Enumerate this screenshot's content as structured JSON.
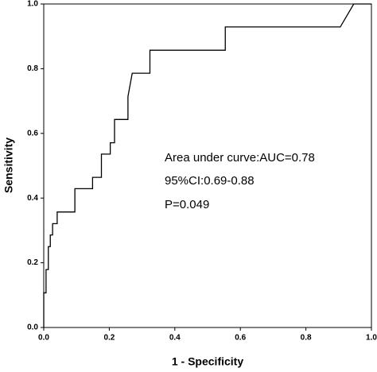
{
  "chart_data": {
    "type": "line",
    "xlabel": "1 - Specificity",
    "ylabel": "Sensitivity",
    "annotations": [
      "Area under curve:AUC=0.78",
      "95%CI:0.69-0.88",
      "P=0.049"
    ],
    "color": "#000000",
    "x": [
      0,
      0,
      0.007,
      0.007,
      0.014,
      0.014,
      0.02,
      0.02,
      0.027,
      0.027,
      0.041,
      0.041,
      0.095,
      0.095,
      0.149,
      0.149,
      0.176,
      0.176,
      0.203,
      0.203,
      0.216,
      0.216,
      0.257,
      0.257,
      0.27,
      0.324,
      0.324,
      0.554,
      0.554,
      0.905,
      0.946,
      1
    ],
    "values": [
      0,
      0.107,
      0.107,
      0.179,
      0.179,
      0.25,
      0.25,
      0.286,
      0.286,
      0.321,
      0.321,
      0.357,
      0.357,
      0.429,
      0.429,
      0.464,
      0.464,
      0.536,
      0.536,
      0.571,
      0.571,
      0.643,
      0.643,
      0.714,
      0.786,
      0.786,
      0.857,
      0.857,
      0.929,
      0.929,
      1,
      1
    ],
    "xlim": [
      0,
      1
    ],
    "ylim": [
      0,
      1
    ],
    "xticks": [
      {
        "value": 0,
        "label": "0.0"
      },
      0.2,
      0.4,
      0.6,
      0.8,
      {
        "value": 1,
        "label": "1.0"
      }
    ],
    "yticks": [
      {
        "value": 0,
        "label": "0.0"
      },
      0.2,
      0.4,
      0.6,
      0.8,
      {
        "value": 1,
        "label": "1.0"
      }
    ]
  }
}
